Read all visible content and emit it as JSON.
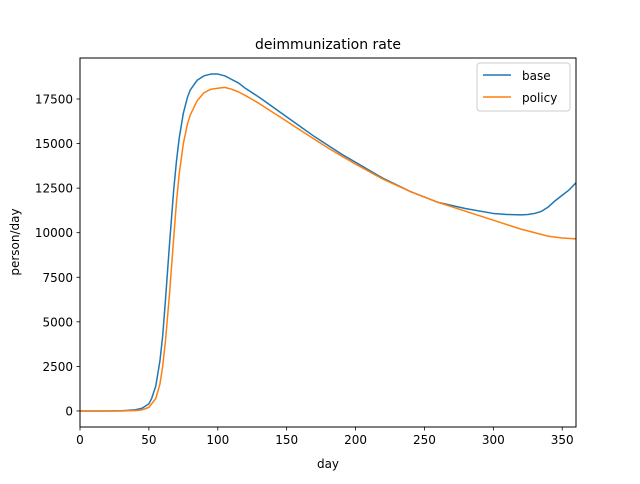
{
  "chart_data": {
    "type": "line",
    "title": "deimmunization rate",
    "xlabel": "day",
    "ylabel": "person/day",
    "xlim": [
      0,
      360
    ],
    "ylim": [
      -900,
      19800
    ],
    "xticks": [
      0,
      50,
      100,
      150,
      200,
      250,
      300,
      350
    ],
    "yticks": [
      0,
      2500,
      5000,
      7500,
      10000,
      12500,
      15000,
      17500
    ],
    "grid": false,
    "legend_position": "top-right",
    "series": [
      {
        "name": "base",
        "color": "#1f77b4",
        "x": [
          0,
          10,
          20,
          30,
          40,
          45,
          50,
          52,
          55,
          58,
          60,
          62,
          65,
          68,
          70,
          72,
          75,
          78,
          80,
          85,
          90,
          95,
          100,
          105,
          110,
          115,
          120,
          130,
          140,
          150,
          160,
          170,
          180,
          190,
          200,
          220,
          240,
          260,
          280,
          300,
          310,
          320,
          325,
          330,
          335,
          340,
          345,
          350,
          355,
          360
        ],
        "y": [
          0,
          0,
          0,
          10,
          60,
          150,
          400,
          700,
          1400,
          2800,
          4200,
          6200,
          9400,
          12400,
          14000,
          15300,
          16700,
          17600,
          18000,
          18550,
          18800,
          18900,
          18900,
          18800,
          18600,
          18400,
          18100,
          17600,
          17050,
          16500,
          15950,
          15400,
          14900,
          14400,
          13950,
          13050,
          12300,
          11700,
          11350,
          11080,
          11020,
          11000,
          11020,
          11080,
          11200,
          11450,
          11800,
          12100,
          12400,
          12800
        ]
      },
      {
        "name": "policy",
        "color": "#ff7f0e",
        "x": [
          0,
          10,
          20,
          30,
          40,
          45,
          50,
          55,
          58,
          60,
          62,
          65,
          68,
          70,
          72,
          75,
          78,
          80,
          85,
          90,
          95,
          100,
          105,
          110,
          115,
          120,
          130,
          140,
          150,
          160,
          170,
          180,
          190,
          200,
          220,
          240,
          260,
          280,
          300,
          320,
          340,
          350,
          360
        ],
        "y": [
          0,
          0,
          0,
          0,
          20,
          60,
          200,
          700,
          1500,
          2500,
          3900,
          6600,
          9700,
          11700,
          13300,
          15000,
          16100,
          16600,
          17400,
          17850,
          18050,
          18100,
          18150,
          18050,
          17900,
          17700,
          17250,
          16750,
          16250,
          15750,
          15250,
          14750,
          14300,
          13850,
          13000,
          12300,
          11700,
          11200,
          10700,
          10200,
          9800,
          9700,
          9650
        ]
      }
    ]
  }
}
